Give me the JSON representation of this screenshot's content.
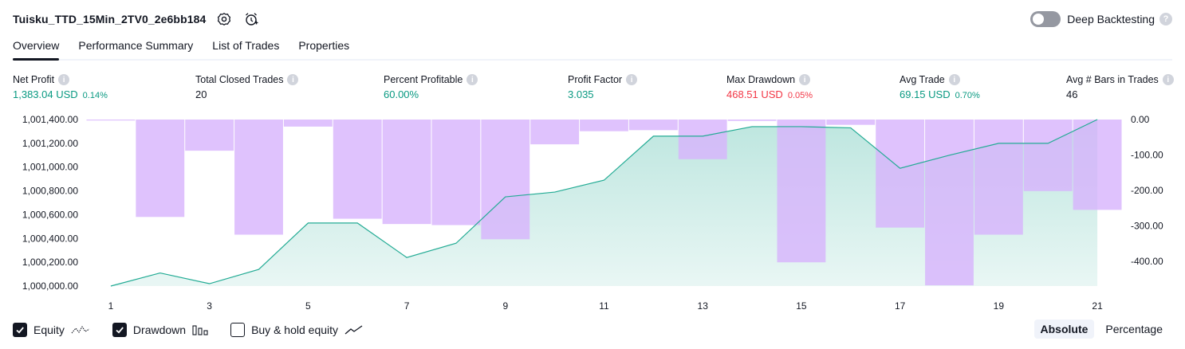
{
  "header": {
    "strategy_name": "Tuisku_TTD_15Min_2TV0_2e6bb184",
    "deep_backtesting_label": "Deep Backtesting",
    "help_glyph": "?"
  },
  "tabs": [
    {
      "label": "Overview",
      "active": true
    },
    {
      "label": "Performance Summary",
      "active": false
    },
    {
      "label": "List of Trades",
      "active": false
    },
    {
      "label": "Properties",
      "active": false
    }
  ],
  "stats": [
    {
      "label": "Net Profit",
      "value": "1,383.04 USD",
      "pct": "0.14%",
      "color": "green"
    },
    {
      "label": "Total Closed Trades",
      "value": "20",
      "pct": "",
      "color": "dark"
    },
    {
      "label": "Percent Profitable",
      "value": "60.00%",
      "pct": "",
      "color": "green"
    },
    {
      "label": "Profit Factor",
      "value": "3.035",
      "pct": "",
      "color": "green"
    },
    {
      "label": "Max Drawdown",
      "value": "468.51 USD",
      "pct": "0.05%",
      "color": "red"
    },
    {
      "label": "Avg Trade",
      "value": "69.15 USD",
      "pct": "0.70%",
      "color": "green"
    },
    {
      "label": "Avg # Bars in Trades",
      "value": "46",
      "pct": "",
      "color": "dark"
    }
  ],
  "chart_data": {
    "type": "line",
    "x": [
      1,
      2,
      3,
      4,
      5,
      6,
      7,
      8,
      9,
      10,
      11,
      12,
      13,
      14,
      15,
      16,
      17,
      18,
      19,
      20,
      21
    ],
    "x_ticks": [
      "1",
      "3",
      "5",
      "7",
      "9",
      "11",
      "13",
      "15",
      "17",
      "19",
      "21"
    ],
    "series": [
      {
        "name": "Equity",
        "kind": "area-line",
        "axis": "left",
        "values": [
          1000000,
          1000110,
          1000020,
          1000140,
          1000530,
          1000530,
          1000240,
          1000360,
          1000750,
          1000790,
          1000890,
          1001260,
          1001260,
          1001340,
          1001340,
          1001330,
          1000990,
          1001100,
          1001200,
          1001200,
          1001400
        ]
      },
      {
        "name": "Drawdown",
        "kind": "bar",
        "axis": "right",
        "values": [
          0,
          -275,
          -88,
          -325,
          -20,
          -280,
          -295,
          -298,
          -338,
          -70,
          -33,
          -30,
          -112,
          -4,
          -403,
          -15,
          -305,
          -468,
          -325,
          -202,
          -255
        ]
      }
    ],
    "y_left": {
      "ticks": [
        "1,000,000.00",
        "1,000,200.00",
        "1,000,400.00",
        "1,000,600.00",
        "1,000,800.00",
        "1,001,000.00",
        "1,001,200.00",
        "1,001,400.00"
      ],
      "min": 1000000,
      "max": 1001400
    },
    "y_right": {
      "ticks": [
        "0.00",
        "-100.00",
        "-200.00",
        "-300.00",
        "-400.00"
      ],
      "min": -470,
      "max": 0
    },
    "colors": {
      "equity_line": "#22ab94",
      "equity_fill": "#22ab94",
      "drawdown_bar": "#d7b3fd"
    }
  },
  "legend": [
    {
      "label": "Equity",
      "checked": true,
      "icon": "equity-line-icon"
    },
    {
      "label": "Drawdown",
      "checked": true,
      "icon": "drawdown-bars-icon"
    },
    {
      "label": "Buy & hold equity",
      "checked": false,
      "icon": "buy-hold-line-icon"
    }
  ],
  "modes": [
    {
      "label": "Absolute",
      "active": true
    },
    {
      "label": "Percentage",
      "active": false
    }
  ]
}
